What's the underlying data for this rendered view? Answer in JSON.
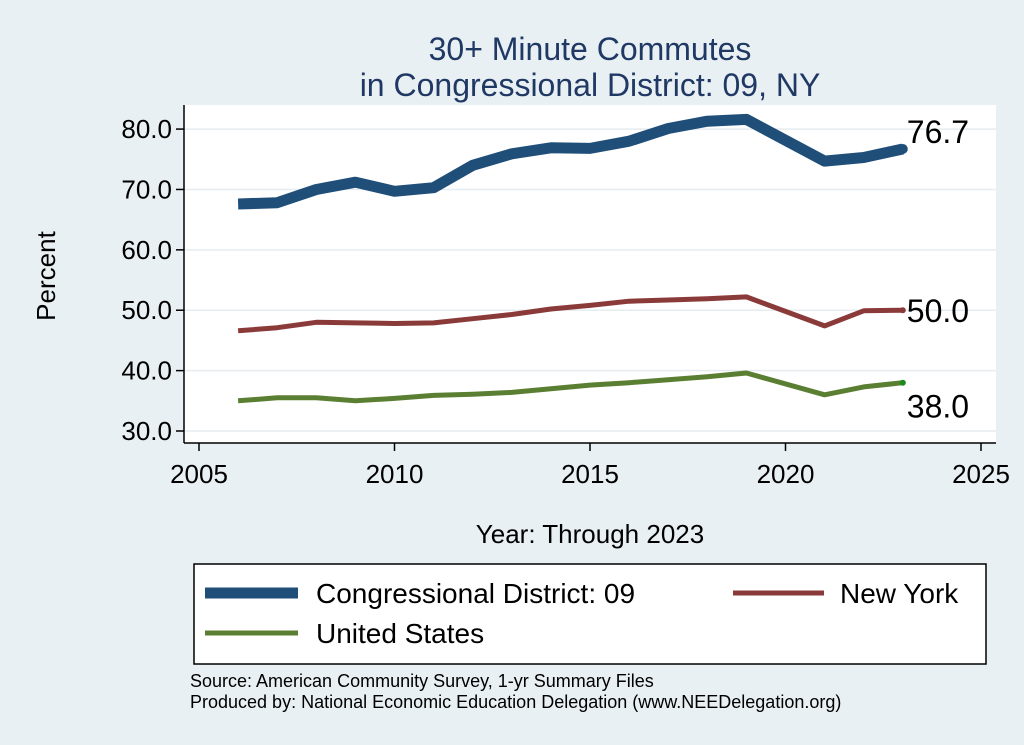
{
  "chart_data": {
    "type": "line",
    "title": [
      "30+ Minute Commutes",
      "in Congressional District:  09, NY"
    ],
    "xlabel": "Year: Through 2023",
    "ylabel": "Percent",
    "xlim": [
      2005,
      2025
    ],
    "ylim": [
      28,
      84
    ],
    "xticks": [
      2005,
      2010,
      2015,
      2020,
      2025
    ],
    "yticks": [
      30,
      40,
      50,
      60,
      70,
      80
    ],
    "grid": "horizontal",
    "legend_position": "bottom",
    "x": [
      2006,
      2007,
      2008,
      2009,
      2010,
      2011,
      2012,
      2013,
      2014,
      2015,
      2016,
      2017,
      2018,
      2019,
      2021,
      2022,
      2023
    ],
    "series": [
      {
        "name": "Congressional District:  09",
        "color": "#1f4e79",
        "width": 11,
        "end_label": "76.7",
        "values": [
          67.6,
          67.8,
          70.0,
          71.2,
          69.7,
          70.3,
          74.0,
          75.9,
          76.9,
          76.8,
          78.0,
          80.1,
          81.3,
          81.6,
          74.7,
          75.3,
          76.7
        ]
      },
      {
        "name": "New York",
        "color": "#8b3a3a",
        "width": 5,
        "end_label": "50.0",
        "values": [
          46.6,
          47.1,
          48.0,
          47.9,
          47.8,
          47.9,
          48.6,
          49.3,
          50.2,
          50.8,
          51.5,
          51.7,
          51.9,
          52.2,
          47.4,
          49.9,
          50.0
        ]
      },
      {
        "name": "United States",
        "color": "#5b7f32",
        "width": 5,
        "end_label": "38.0",
        "values": [
          35.0,
          35.5,
          35.5,
          35.0,
          35.4,
          35.9,
          36.1,
          36.4,
          37.0,
          37.6,
          38.0,
          38.5,
          39.0,
          39.6,
          36.0,
          37.3,
          38.0
        ]
      }
    ]
  },
  "source_lines": [
    "Source: American Community Survey, 1-yr Summary Files",
    "Produced by: National Economic Education Delegation (www.NEEDelegation.org)"
  ]
}
